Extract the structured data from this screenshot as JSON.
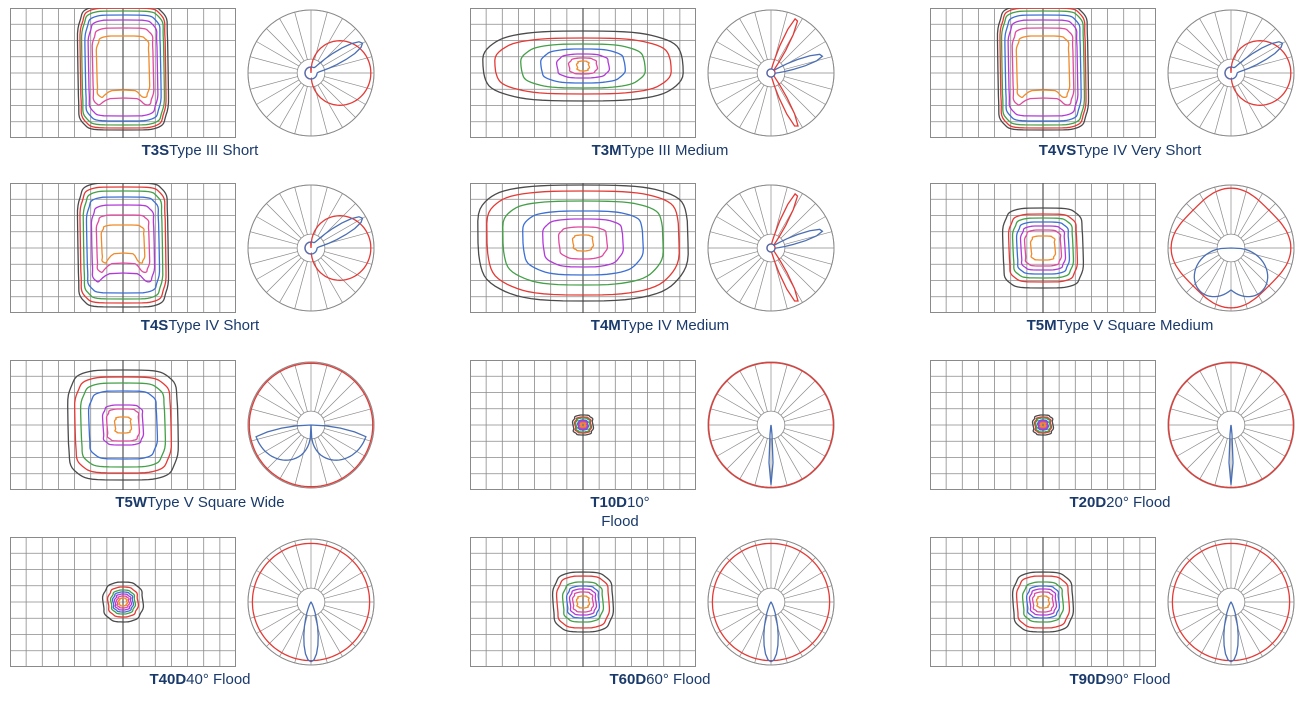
{
  "colors": {
    "grid": "#8a8a8a",
    "contours": [
      "#4a4a4a",
      "#e53935",
      "#43a047",
      "#3b6fd4",
      "#b03ad8",
      "#e04aa0",
      "#f08a2a"
    ],
    "curve_red": "#e53935",
    "curve_blue": "#4a6fb5",
    "caption": "#1a3a6b"
  },
  "patterns": [
    {
      "code": "T3S",
      "name": "Type III Short",
      "shape": "T3S",
      "polar": "asym"
    },
    {
      "code": "T3M",
      "name": "Type III Medium",
      "shape": "T3M",
      "polar": "asymM"
    },
    {
      "code": "T4VS",
      "name": "Type IV Very Short",
      "shape": "T4VS",
      "polar": "asym"
    },
    {
      "code": "T4S",
      "name": "Type IV Short",
      "shape": "T4S",
      "polar": "asym"
    },
    {
      "code": "T4M",
      "name": "Type IV Medium",
      "shape": "T4M",
      "polar": "asymM"
    },
    {
      "code": "T5M",
      "name": "Type V Square Medium",
      "shape": "T5M",
      "polar": "sym"
    },
    {
      "code": "T5W",
      "name": "Type V Square Wide",
      "shape": "T5W",
      "polar": "symW"
    },
    {
      "code": "T10D",
      "name": "10° Flood",
      "shape": "T10D",
      "polar": "spot"
    },
    {
      "code": "T20D",
      "name": "20° Flood",
      "shape": "T20D",
      "polar": "spot"
    },
    {
      "code": "T40D",
      "name": "40° Flood",
      "shape": "T40D",
      "polar": "flood"
    },
    {
      "code": "T60D",
      "name": "60° Flood",
      "shape": "T60D",
      "polar": "flood"
    },
    {
      "code": "T90D",
      "name": "90° Flood",
      "shape": "T90D",
      "polar": "flood"
    }
  ]
}
